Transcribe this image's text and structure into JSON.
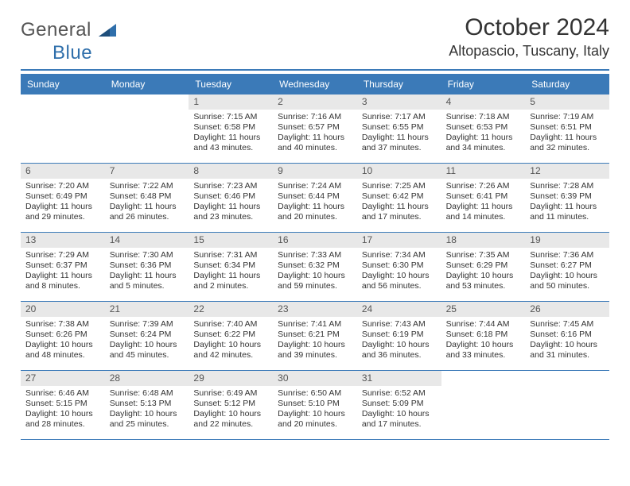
{
  "brand": {
    "left": "General",
    "right": "Blue"
  },
  "title": "October 2024",
  "location": "Altopascio, Tuscany, Italy",
  "colors": {
    "accent": "#3b7ab8",
    "dow_bg": "#3b7ab8",
    "daynum_bg": "#e8e8e8",
    "text": "#333333"
  },
  "dows": [
    "Sunday",
    "Monday",
    "Tuesday",
    "Wednesday",
    "Thursday",
    "Friday",
    "Saturday"
  ],
  "weeks": [
    [
      {
        "n": "",
        "sr": "",
        "ss": "",
        "dl": ""
      },
      {
        "n": "",
        "sr": "",
        "ss": "",
        "dl": ""
      },
      {
        "n": "1",
        "sr": "Sunrise: 7:15 AM",
        "ss": "Sunset: 6:58 PM",
        "dl": "Daylight: 11 hours and 43 minutes."
      },
      {
        "n": "2",
        "sr": "Sunrise: 7:16 AM",
        "ss": "Sunset: 6:57 PM",
        "dl": "Daylight: 11 hours and 40 minutes."
      },
      {
        "n": "3",
        "sr": "Sunrise: 7:17 AM",
        "ss": "Sunset: 6:55 PM",
        "dl": "Daylight: 11 hours and 37 minutes."
      },
      {
        "n": "4",
        "sr": "Sunrise: 7:18 AM",
        "ss": "Sunset: 6:53 PM",
        "dl": "Daylight: 11 hours and 34 minutes."
      },
      {
        "n": "5",
        "sr": "Sunrise: 7:19 AM",
        "ss": "Sunset: 6:51 PM",
        "dl": "Daylight: 11 hours and 32 minutes."
      }
    ],
    [
      {
        "n": "6",
        "sr": "Sunrise: 7:20 AM",
        "ss": "Sunset: 6:49 PM",
        "dl": "Daylight: 11 hours and 29 minutes."
      },
      {
        "n": "7",
        "sr": "Sunrise: 7:22 AM",
        "ss": "Sunset: 6:48 PM",
        "dl": "Daylight: 11 hours and 26 minutes."
      },
      {
        "n": "8",
        "sr": "Sunrise: 7:23 AM",
        "ss": "Sunset: 6:46 PM",
        "dl": "Daylight: 11 hours and 23 minutes."
      },
      {
        "n": "9",
        "sr": "Sunrise: 7:24 AM",
        "ss": "Sunset: 6:44 PM",
        "dl": "Daylight: 11 hours and 20 minutes."
      },
      {
        "n": "10",
        "sr": "Sunrise: 7:25 AM",
        "ss": "Sunset: 6:42 PM",
        "dl": "Daylight: 11 hours and 17 minutes."
      },
      {
        "n": "11",
        "sr": "Sunrise: 7:26 AM",
        "ss": "Sunset: 6:41 PM",
        "dl": "Daylight: 11 hours and 14 minutes."
      },
      {
        "n": "12",
        "sr": "Sunrise: 7:28 AM",
        "ss": "Sunset: 6:39 PM",
        "dl": "Daylight: 11 hours and 11 minutes."
      }
    ],
    [
      {
        "n": "13",
        "sr": "Sunrise: 7:29 AM",
        "ss": "Sunset: 6:37 PM",
        "dl": "Daylight: 11 hours and 8 minutes."
      },
      {
        "n": "14",
        "sr": "Sunrise: 7:30 AM",
        "ss": "Sunset: 6:36 PM",
        "dl": "Daylight: 11 hours and 5 minutes."
      },
      {
        "n": "15",
        "sr": "Sunrise: 7:31 AM",
        "ss": "Sunset: 6:34 PM",
        "dl": "Daylight: 11 hours and 2 minutes."
      },
      {
        "n": "16",
        "sr": "Sunrise: 7:33 AM",
        "ss": "Sunset: 6:32 PM",
        "dl": "Daylight: 10 hours and 59 minutes."
      },
      {
        "n": "17",
        "sr": "Sunrise: 7:34 AM",
        "ss": "Sunset: 6:30 PM",
        "dl": "Daylight: 10 hours and 56 minutes."
      },
      {
        "n": "18",
        "sr": "Sunrise: 7:35 AM",
        "ss": "Sunset: 6:29 PM",
        "dl": "Daylight: 10 hours and 53 minutes."
      },
      {
        "n": "19",
        "sr": "Sunrise: 7:36 AM",
        "ss": "Sunset: 6:27 PM",
        "dl": "Daylight: 10 hours and 50 minutes."
      }
    ],
    [
      {
        "n": "20",
        "sr": "Sunrise: 7:38 AM",
        "ss": "Sunset: 6:26 PM",
        "dl": "Daylight: 10 hours and 48 minutes."
      },
      {
        "n": "21",
        "sr": "Sunrise: 7:39 AM",
        "ss": "Sunset: 6:24 PM",
        "dl": "Daylight: 10 hours and 45 minutes."
      },
      {
        "n": "22",
        "sr": "Sunrise: 7:40 AM",
        "ss": "Sunset: 6:22 PM",
        "dl": "Daylight: 10 hours and 42 minutes."
      },
      {
        "n": "23",
        "sr": "Sunrise: 7:41 AM",
        "ss": "Sunset: 6:21 PM",
        "dl": "Daylight: 10 hours and 39 minutes."
      },
      {
        "n": "24",
        "sr": "Sunrise: 7:43 AM",
        "ss": "Sunset: 6:19 PM",
        "dl": "Daylight: 10 hours and 36 minutes."
      },
      {
        "n": "25",
        "sr": "Sunrise: 7:44 AM",
        "ss": "Sunset: 6:18 PM",
        "dl": "Daylight: 10 hours and 33 minutes."
      },
      {
        "n": "26",
        "sr": "Sunrise: 7:45 AM",
        "ss": "Sunset: 6:16 PM",
        "dl": "Daylight: 10 hours and 31 minutes."
      }
    ],
    [
      {
        "n": "27",
        "sr": "Sunrise: 6:46 AM",
        "ss": "Sunset: 5:15 PM",
        "dl": "Daylight: 10 hours and 28 minutes."
      },
      {
        "n": "28",
        "sr": "Sunrise: 6:48 AM",
        "ss": "Sunset: 5:13 PM",
        "dl": "Daylight: 10 hours and 25 minutes."
      },
      {
        "n": "29",
        "sr": "Sunrise: 6:49 AM",
        "ss": "Sunset: 5:12 PM",
        "dl": "Daylight: 10 hours and 22 minutes."
      },
      {
        "n": "30",
        "sr": "Sunrise: 6:50 AM",
        "ss": "Sunset: 5:10 PM",
        "dl": "Daylight: 10 hours and 20 minutes."
      },
      {
        "n": "31",
        "sr": "Sunrise: 6:52 AM",
        "ss": "Sunset: 5:09 PM",
        "dl": "Daylight: 10 hours and 17 minutes."
      },
      {
        "n": "",
        "sr": "",
        "ss": "",
        "dl": ""
      },
      {
        "n": "",
        "sr": "",
        "ss": "",
        "dl": ""
      }
    ]
  ]
}
